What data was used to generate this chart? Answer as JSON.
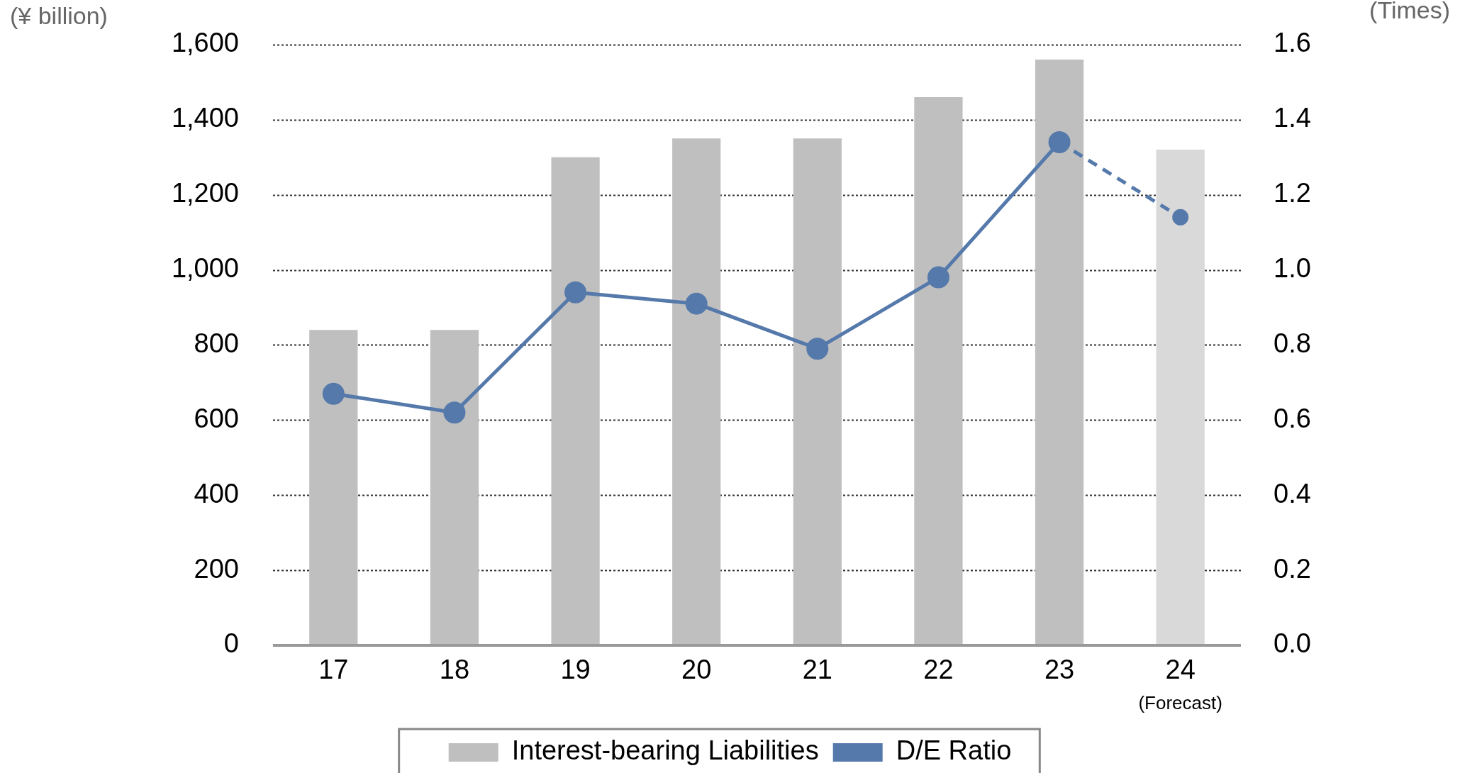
{
  "chart_data": {
    "type": "bar",
    "categories": [
      "17",
      "18",
      "19",
      "20",
      "21",
      "22",
      "23",
      "24"
    ],
    "series": [
      {
        "name": "Interest-bearing Liabilities",
        "color": "#bfbfbf",
        "values": [
          840,
          840,
          1300,
          1350,
          1350,
          1460,
          1560,
          null
        ]
      },
      {
        "color": "#d9d9d9",
        "line_style": "dashed",
        "values": [
          null,
          null,
          null,
          null,
          null,
          null,
          null,
          1320
        ]
      },
      {
        "name": "D/E Ratio",
        "type": "line",
        "axis": "y2",
        "color": "#5479aa",
        "values": [
          0.67,
          0.62,
          0.94,
          0.91,
          0.79,
          0.98,
          1.34,
          null
        ]
      },
      {
        "type": "line",
        "axis": "y2",
        "color": "#5479aa",
        "line_style": "dashed",
        "values": [
          null,
          null,
          null,
          null,
          null,
          null,
          1.34,
          1.14
        ]
      }
    ],
    "stacked": true,
    "marker": "circle",
    "ylabel": "(¥ billion)",
    "y2label": "(Times)",
    "ylim": [
      0,
      1600
    ],
    "yticks": [
      0,
      200,
      400,
      600,
      800,
      {
        "value": 1000,
        "label": "1,000"
      },
      {
        "value": 1200,
        "label": "1,200"
      },
      {
        "value": 1400,
        "label": "1,400"
      },
      {
        "value": 1600,
        "label": "1,600"
      }
    ],
    "y2lim": [
      0,
      1.6
    ],
    "y2ticks": [
      {
        "value": 0,
        "label": "0.0"
      },
      0.2,
      0.4,
      0.6,
      0.8,
      {
        "value": 1,
        "label": "1.0"
      },
      1.2,
      1.4,
      1.6
    ],
    "annotations": [
      "(Forecast)"
    ],
    "grid": "y",
    "legend": "bottom"
  }
}
